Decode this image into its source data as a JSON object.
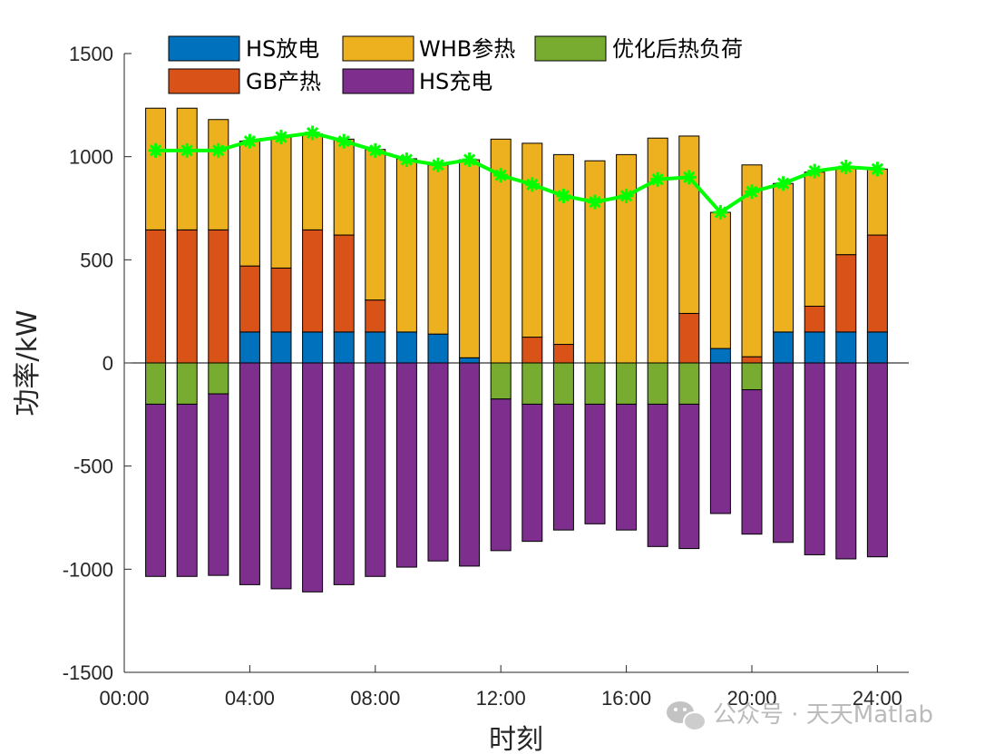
{
  "chart_data": {
    "type": "bar",
    "stacked": true,
    "xlabel": "时刻",
    "ylabel": "功率/kW",
    "ylim": [
      -1500,
      1500
    ],
    "yticks": [
      -1500,
      -1000,
      -500,
      0,
      500,
      1000,
      1500
    ],
    "xlim": [
      0,
      25
    ],
    "xticks": [
      0,
      4,
      8,
      12,
      16,
      20,
      24
    ],
    "xtick_labels": [
      "00:00",
      "04:00",
      "08:00",
      "12:00",
      "16:00",
      "20:00",
      "24:00"
    ],
    "grid": false,
    "legend_position": "top-left inside plot, 3 columns",
    "hours": [
      1,
      2,
      3,
      4,
      5,
      6,
      7,
      8,
      9,
      10,
      11,
      12,
      13,
      14,
      15,
      16,
      17,
      18,
      19,
      20,
      21,
      22,
      23,
      24
    ],
    "series": [
      {
        "name": "HS放电",
        "color": "#0072BD",
        "stack": "positive",
        "values": [
          0,
          0,
          0,
          150,
          150,
          150,
          150,
          150,
          150,
          140,
          25,
          0,
          0,
          0,
          0,
          0,
          0,
          0,
          70,
          0,
          150,
          150,
          150,
          150
        ]
      },
      {
        "name": "GB产热",
        "color": "#D95319",
        "stack": "positive",
        "values": [
          645,
          645,
          645,
          320,
          310,
          495,
          470,
          155,
          0,
          0,
          0,
          0,
          125,
          90,
          0,
          0,
          0,
          240,
          0,
          30,
          0,
          125,
          375,
          470
        ]
      },
      {
        "name": "WHB参热",
        "color": "#EDB120",
        "stack": "positive",
        "values": [
          590,
          590,
          535,
          605,
          635,
          465,
          465,
          730,
          840,
          820,
          960,
          1085,
          940,
          920,
          980,
          1010,
          1090,
          860,
          660,
          930,
          720,
          650,
          425,
          320
        ]
      },
      {
        "name": "优化后热负荷",
        "color": "#77AC30",
        "stack": "negative",
        "values": [
          -200,
          -200,
          -150,
          0,
          0,
          0,
          0,
          0,
          0,
          0,
          0,
          -175,
          -200,
          -200,
          -200,
          -200,
          -200,
          -200,
          0,
          -130,
          0,
          0,
          0,
          0
        ]
      },
      {
        "name": "HS充电",
        "color": "#7E2F8E",
        "stack": "negative",
        "values": [
          -835,
          -835,
          -880,
          -1075,
          -1095,
          -1110,
          -1075,
          -1035,
          -990,
          -960,
          -985,
          -735,
          -665,
          -610,
          -580,
          -610,
          -690,
          -700,
          -730,
          -700,
          -870,
          -930,
          -950,
          -940
        ]
      }
    ],
    "line": {
      "name": "优化后热负荷",
      "color": "#00FF00",
      "marker": "asterisk",
      "values": [
        1030,
        1030,
        1030,
        1075,
        1095,
        1115,
        1075,
        1030,
        985,
        960,
        985,
        910,
        865,
        810,
        780,
        810,
        890,
        900,
        730,
        830,
        870,
        930,
        950,
        940
      ]
    }
  },
  "legend": {
    "items": [
      {
        "label": "HS放电",
        "color": "#0072BD"
      },
      {
        "label": "WHB参热",
        "color": "#EDB120"
      },
      {
        "label": "优化后热负荷",
        "color": "#77AC30"
      },
      {
        "label": "GB产热",
        "color": "#D95319"
      },
      {
        "label": "HS充电",
        "color": "#7E2F8E"
      }
    ]
  },
  "watermark": {
    "text": "公众号 · 天天Matlab",
    "icon": "wechat-icon"
  }
}
